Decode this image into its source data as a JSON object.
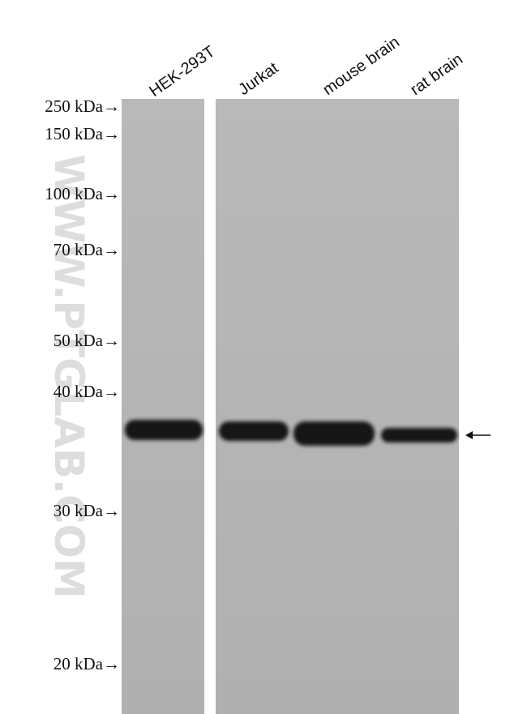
{
  "lanes": [
    "HEK-293T",
    "Jurkat",
    "mouse brain",
    "rat brain"
  ],
  "markers": [
    "250 kDa→",
    "150 kDa→",
    "100 kDa→",
    "70 kDa→",
    "50 kDa→",
    "40 kDa→",
    "30 kDa→",
    "20 kDa→"
  ],
  "watermark": "WWW.PTGLAB.COM"
}
